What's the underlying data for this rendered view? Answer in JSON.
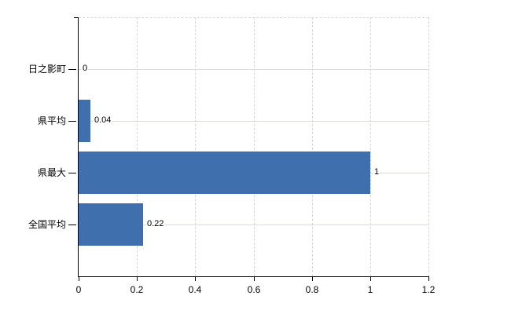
{
  "chart_data": {
    "type": "bar",
    "orientation": "horizontal",
    "title": "",
    "categories": [
      "日之影町",
      "県平均",
      "県最大",
      "全国平均"
    ],
    "values": [
      0,
      0.04,
      1,
      0.22
    ],
    "value_labels": [
      "0",
      "0.04",
      "1",
      "0.22"
    ],
    "x_ticks": [
      0,
      0.2,
      0.4,
      0.6,
      0.8,
      1,
      1.2
    ],
    "x_tick_labels": [
      "0",
      "0.2",
      "0.4",
      "0.6",
      "0.8",
      "1",
      "1.2"
    ],
    "xlim": [
      0,
      1.2
    ],
    "grid": true,
    "legend": false,
    "colors": {
      "bar": "#3F6FAD",
      "axis": "#000000",
      "h_gridline": "#D9DED9",
      "v_gridline": "#D6D6D6",
      "top_gridline": "#DDD6DD",
      "background": "#FFFFFF",
      "text": "#000000"
    }
  }
}
